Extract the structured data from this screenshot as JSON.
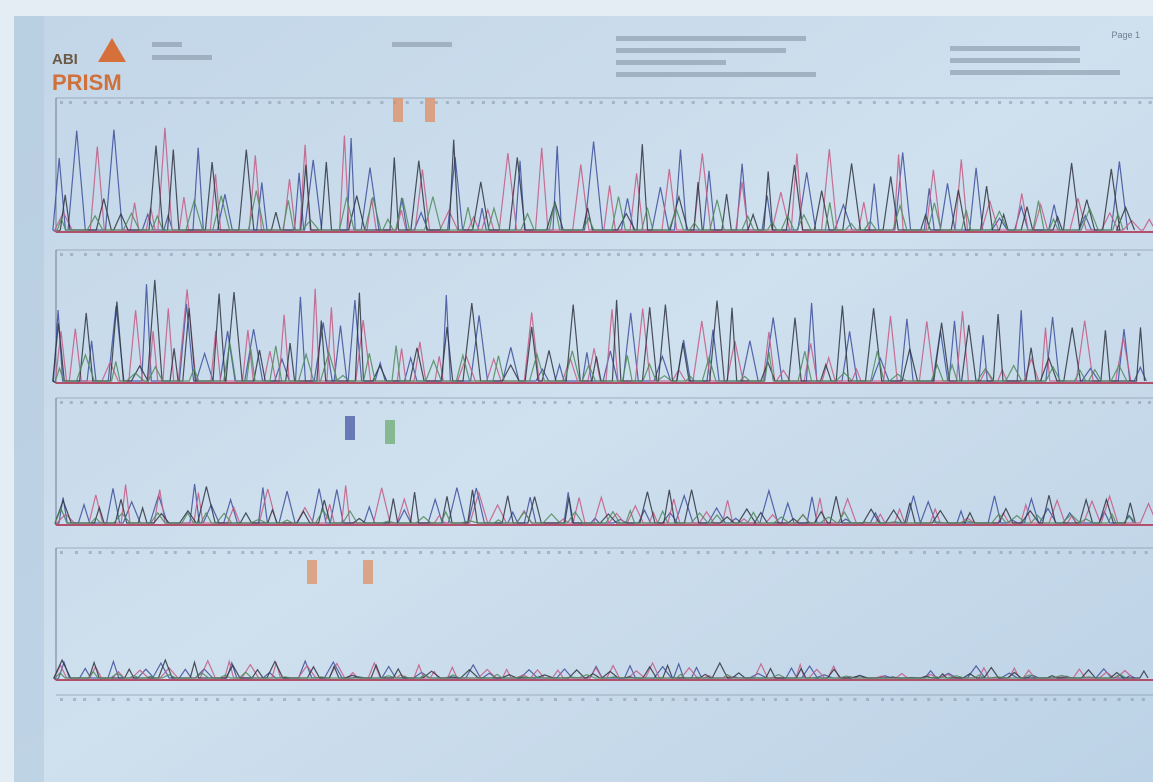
{
  "header": {
    "logo_top": "ABI",
    "logo_bottom": "PRISM",
    "page": "Page 1"
  }
}
